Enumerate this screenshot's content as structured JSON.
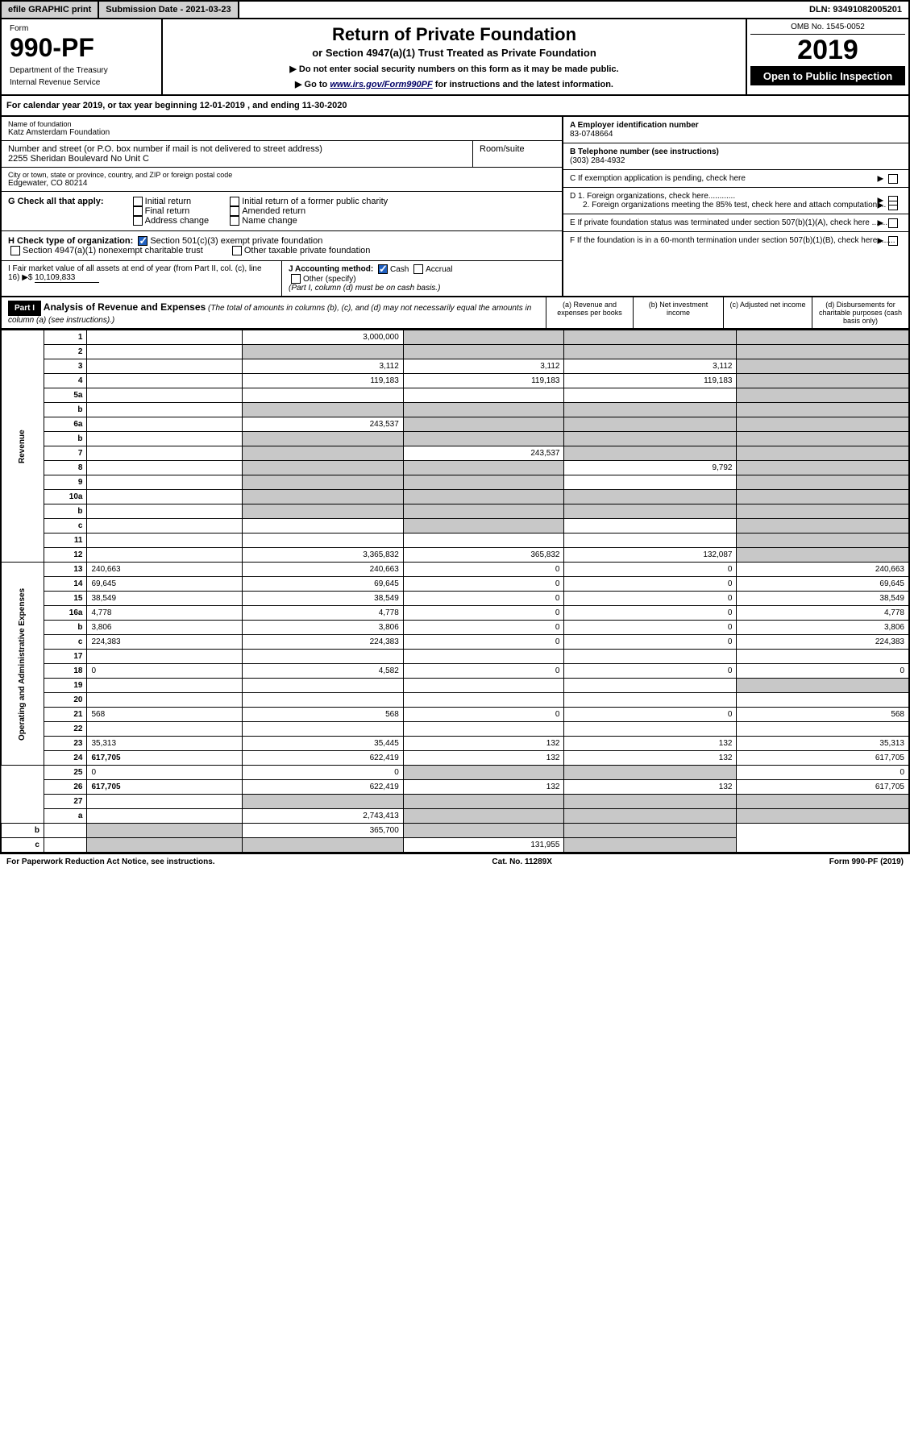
{
  "topbar": {
    "efile": "efile GRAPHIC print",
    "submission_label": "Submission Date - 2021-03-23",
    "dln": "DLN: 93491082005201"
  },
  "header": {
    "form_label": "Form",
    "form_num": "990-PF",
    "dept1": "Department of the Treasury",
    "dept2": "Internal Revenue Service",
    "title": "Return of Private Foundation",
    "subtitle": "or Section 4947(a)(1) Trust Treated as Private Foundation",
    "note1": "▶ Do not enter social security numbers on this form as it may be made public.",
    "note2_pre": "▶ Go to ",
    "note2_link": "www.irs.gov/Form990PF",
    "note2_post": " for instructions and the latest information.",
    "omb": "OMB No. 1545-0052",
    "year": "2019",
    "open": "Open to Public Inspection"
  },
  "cal": "For calendar year 2019, or tax year beginning 12-01-2019              , and ending 11-30-2020",
  "info": {
    "name_lbl": "Name of foundation",
    "name": "Katz Amsterdam Foundation",
    "addr_lbl": "Number and street (or P.O. box number if mail is not delivered to street address)",
    "addr": "2255 Sheridan Boulevard No Unit C",
    "room_lbl": "Room/suite",
    "city_lbl": "City or town, state or province, country, and ZIP or foreign postal code",
    "city": "Edgewater, CO  80214",
    "g_lbl": "G Check all that apply:",
    "g_initial": "Initial return",
    "g_final": "Final return",
    "g_addr": "Address change",
    "g_initial_pub": "Initial return of a former public charity",
    "g_amended": "Amended return",
    "g_name": "Name change",
    "h_lbl": "H Check type of organization:",
    "h_501": "Section 501(c)(3) exempt private foundation",
    "h_4947": "Section 4947(a)(1) nonexempt charitable trust",
    "h_other": "Other taxable private foundation",
    "i_lbl": "I Fair market value of all assets at end of year (from Part II, col. (c), line 16) ▶$ ",
    "i_val": "10,109,833",
    "j_lbl": "J Accounting method:",
    "j_cash": "Cash",
    "j_accrual": "Accrual",
    "j_other": "Other (specify)",
    "j_note": "(Part I, column (d) must be on cash basis.)",
    "a_lbl": "A Employer identification number",
    "a_val": "83-0748664",
    "b_lbl": "B Telephone number (see instructions)",
    "b_val": "(303) 284-4932",
    "c_lbl": "C If exemption application is pending, check here",
    "d1_lbl": "D 1. Foreign organizations, check here............",
    "d2_lbl": "2. Foreign organizations meeting the 85% test, check here and attach computation ...",
    "e_lbl": "E  If private foundation status was terminated under section 507(b)(1)(A), check here .......",
    "f_lbl": "F  If the foundation is in a 60-month termination under section 507(b)(1)(B), check here .......",
    "arrow": "▶"
  },
  "part1": {
    "hdr": "Part I",
    "title": "Analysis of Revenue and Expenses",
    "note": " (The total of amounts in columns (b), (c), and (d) may not necessarily equal the amounts in column (a) (see instructions).)",
    "col_a": "(a) Revenue and expenses per books",
    "col_b": "(b) Net investment income",
    "col_c": "(c) Adjusted net income",
    "col_d": "(d) Disbursements for charitable purposes (cash basis only)"
  },
  "sections": {
    "revenue": "Revenue",
    "opex": "Operating and Administrative Expenses"
  },
  "rows": [
    {
      "n": "1",
      "d": "",
      "a": "3,000,000",
      "b": "",
      "c": "",
      "ga": false,
      "gb": true,
      "gc": true,
      "gd": true
    },
    {
      "n": "2",
      "d": "",
      "a": "",
      "b": "",
      "c": "",
      "ga": true,
      "gb": true,
      "gc": true,
      "gd": true
    },
    {
      "n": "3",
      "d": "",
      "a": "3,112",
      "b": "3,112",
      "c": "3,112",
      "ga": false,
      "gb": false,
      "gc": false,
      "gd": true
    },
    {
      "n": "4",
      "d": "",
      "a": "119,183",
      "b": "119,183",
      "c": "119,183",
      "ga": false,
      "gb": false,
      "gc": false,
      "gd": true
    },
    {
      "n": "5a",
      "d": "",
      "a": "",
      "b": "",
      "c": "",
      "ga": false,
      "gb": false,
      "gc": false,
      "gd": true
    },
    {
      "n": "b",
      "d": "",
      "a": "",
      "b": "",
      "c": "",
      "ga": true,
      "gb": true,
      "gc": true,
      "gd": true
    },
    {
      "n": "6a",
      "d": "",
      "a": "243,537",
      "b": "",
      "c": "",
      "ga": false,
      "gb": true,
      "gc": true,
      "gd": true
    },
    {
      "n": "b",
      "d": "",
      "a": "",
      "b": "",
      "c": "",
      "ga": true,
      "gb": true,
      "gc": true,
      "gd": true
    },
    {
      "n": "7",
      "d": "",
      "a": "",
      "b": "243,537",
      "c": "",
      "ga": true,
      "gb": false,
      "gc": true,
      "gd": true
    },
    {
      "n": "8",
      "d": "",
      "a": "",
      "b": "",
      "c": "9,792",
      "ga": true,
      "gb": true,
      "gc": false,
      "gd": true
    },
    {
      "n": "9",
      "d": "",
      "a": "",
      "b": "",
      "c": "",
      "ga": true,
      "gb": true,
      "gc": false,
      "gd": true
    },
    {
      "n": "10a",
      "d": "",
      "a": "",
      "b": "",
      "c": "",
      "ga": true,
      "gb": true,
      "gc": true,
      "gd": true
    },
    {
      "n": "b",
      "d": "",
      "a": "",
      "b": "",
      "c": "",
      "ga": true,
      "gb": true,
      "gc": true,
      "gd": true
    },
    {
      "n": "c",
      "d": "",
      "a": "",
      "b": "",
      "c": "",
      "ga": false,
      "gb": true,
      "gc": false,
      "gd": true
    },
    {
      "n": "11",
      "d": "",
      "a": "",
      "b": "",
      "c": "",
      "ga": false,
      "gb": false,
      "gc": false,
      "gd": true
    },
    {
      "n": "12",
      "d": "",
      "a": "3,365,832",
      "b": "365,832",
      "c": "132,087",
      "ga": false,
      "gb": false,
      "gc": false,
      "gd": true,
      "bold": true
    },
    {
      "n": "13",
      "d": "240,663",
      "a": "240,663",
      "b": "0",
      "c": "0"
    },
    {
      "n": "14",
      "d": "69,645",
      "a": "69,645",
      "b": "0",
      "c": "0"
    },
    {
      "n": "15",
      "d": "38,549",
      "a": "38,549",
      "b": "0",
      "c": "0"
    },
    {
      "n": "16a",
      "d": "4,778",
      "a": "4,778",
      "b": "0",
      "c": "0"
    },
    {
      "n": "b",
      "d": "3,806",
      "a": "3,806",
      "b": "0",
      "c": "0"
    },
    {
      "n": "c",
      "d": "224,383",
      "a": "224,383",
      "b": "0",
      "c": "0"
    },
    {
      "n": "17",
      "d": "",
      "a": "",
      "b": "",
      "c": ""
    },
    {
      "n": "18",
      "d": "0",
      "a": "4,582",
      "b": "0",
      "c": "0"
    },
    {
      "n": "19",
      "d": "",
      "a": "",
      "b": "",
      "c": "",
      "gd": true
    },
    {
      "n": "20",
      "d": "",
      "a": "",
      "b": "",
      "c": ""
    },
    {
      "n": "21",
      "d": "568",
      "a": "568",
      "b": "0",
      "c": "0"
    },
    {
      "n": "22",
      "d": "",
      "a": "",
      "b": "",
      "c": ""
    },
    {
      "n": "23",
      "d": "35,313",
      "a": "35,445",
      "b": "132",
      "c": "132"
    },
    {
      "n": "24",
      "d": "617,705",
      "a": "622,419",
      "b": "132",
      "c": "132",
      "bold": true
    },
    {
      "n": "25",
      "d": "0",
      "a": "0",
      "b": "",
      "c": "",
      "gb": true,
      "gc": true
    },
    {
      "n": "26",
      "d": "617,705",
      "a": "622,419",
      "b": "132",
      "c": "132",
      "bold": true
    },
    {
      "n": "27",
      "d": "",
      "a": "",
      "b": "",
      "c": "",
      "ga": true,
      "gb": true,
      "gc": true,
      "gd": true
    },
    {
      "n": "a",
      "d": "",
      "a": "2,743,413",
      "b": "",
      "c": "",
      "gb": true,
      "gc": true,
      "gd": true,
      "bold": true
    },
    {
      "n": "b",
      "d": "",
      "a": "",
      "b": "365,700",
      "c": "",
      "ga": true,
      "gc": true,
      "gd": true,
      "bold": true
    },
    {
      "n": "c",
      "d": "",
      "a": "",
      "b": "",
      "c": "131,955",
      "ga": true,
      "gb": true,
      "gd": true,
      "bold": true
    }
  ],
  "footer": {
    "paperwork": "For Paperwork Reduction Act Notice, see instructions.",
    "cat": "Cat. No. 11289X",
    "form": "Form 990-PF (2019)"
  }
}
